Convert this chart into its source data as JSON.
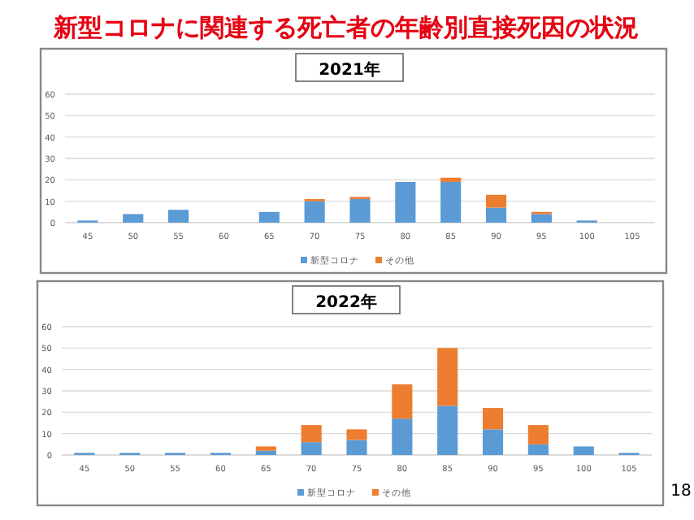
{
  "chart_data": [
    {
      "type": "bar",
      "title": "2021年",
      "stacked": true,
      "grid": "y",
      "legend": "bottom",
      "ylim": [
        0,
        60
      ],
      "yticks": [
        0,
        10,
        20,
        30,
        40,
        50,
        60
      ],
      "categories": [
        "45",
        "50",
        "55",
        "60",
        "65",
        "70",
        "75",
        "80",
        "85",
        "90",
        "95",
        "100",
        "105"
      ],
      "series": [
        {
          "name": "新型コロナ",
          "color": "#5b9bd5",
          "values": [
            1,
            4,
            6,
            0,
            5,
            10,
            11,
            19,
            19,
            7,
            4,
            1,
            0
          ]
        },
        {
          "name": "その他",
          "color": "#ed7d31",
          "values": [
            0,
            0,
            0,
            0,
            0,
            1,
            1,
            0,
            2,
            6,
            1,
            0,
            0
          ]
        }
      ],
      "annotations": [
        "新型コロナに関連する死亡者の年齢別直接死因の状況"
      ]
    },
    {
      "type": "bar",
      "title": "2022年",
      "stacked": true,
      "grid": "y",
      "legend": "bottom",
      "ylim": [
        0,
        60
      ],
      "yticks": [
        0,
        10,
        20,
        30,
        40,
        50,
        60
      ],
      "categories": [
        "45",
        "50",
        "55",
        "60",
        "65",
        "70",
        "75",
        "80",
        "85",
        "90",
        "95",
        "100",
        "105"
      ],
      "series": [
        {
          "name": "新型コロナ",
          "color": "#5b9bd5",
          "values": [
            1,
            1,
            1,
            1,
            2,
            6,
            7,
            17,
            23,
            12,
            5,
            4,
            1
          ]
        },
        {
          "name": "その他",
          "color": "#ed7d31",
          "values": [
            0,
            0,
            0,
            0,
            2,
            8,
            5,
            16,
            27,
            10,
            9,
            0,
            0
          ]
        }
      ],
      "annotations": [
        "18"
      ]
    }
  ]
}
